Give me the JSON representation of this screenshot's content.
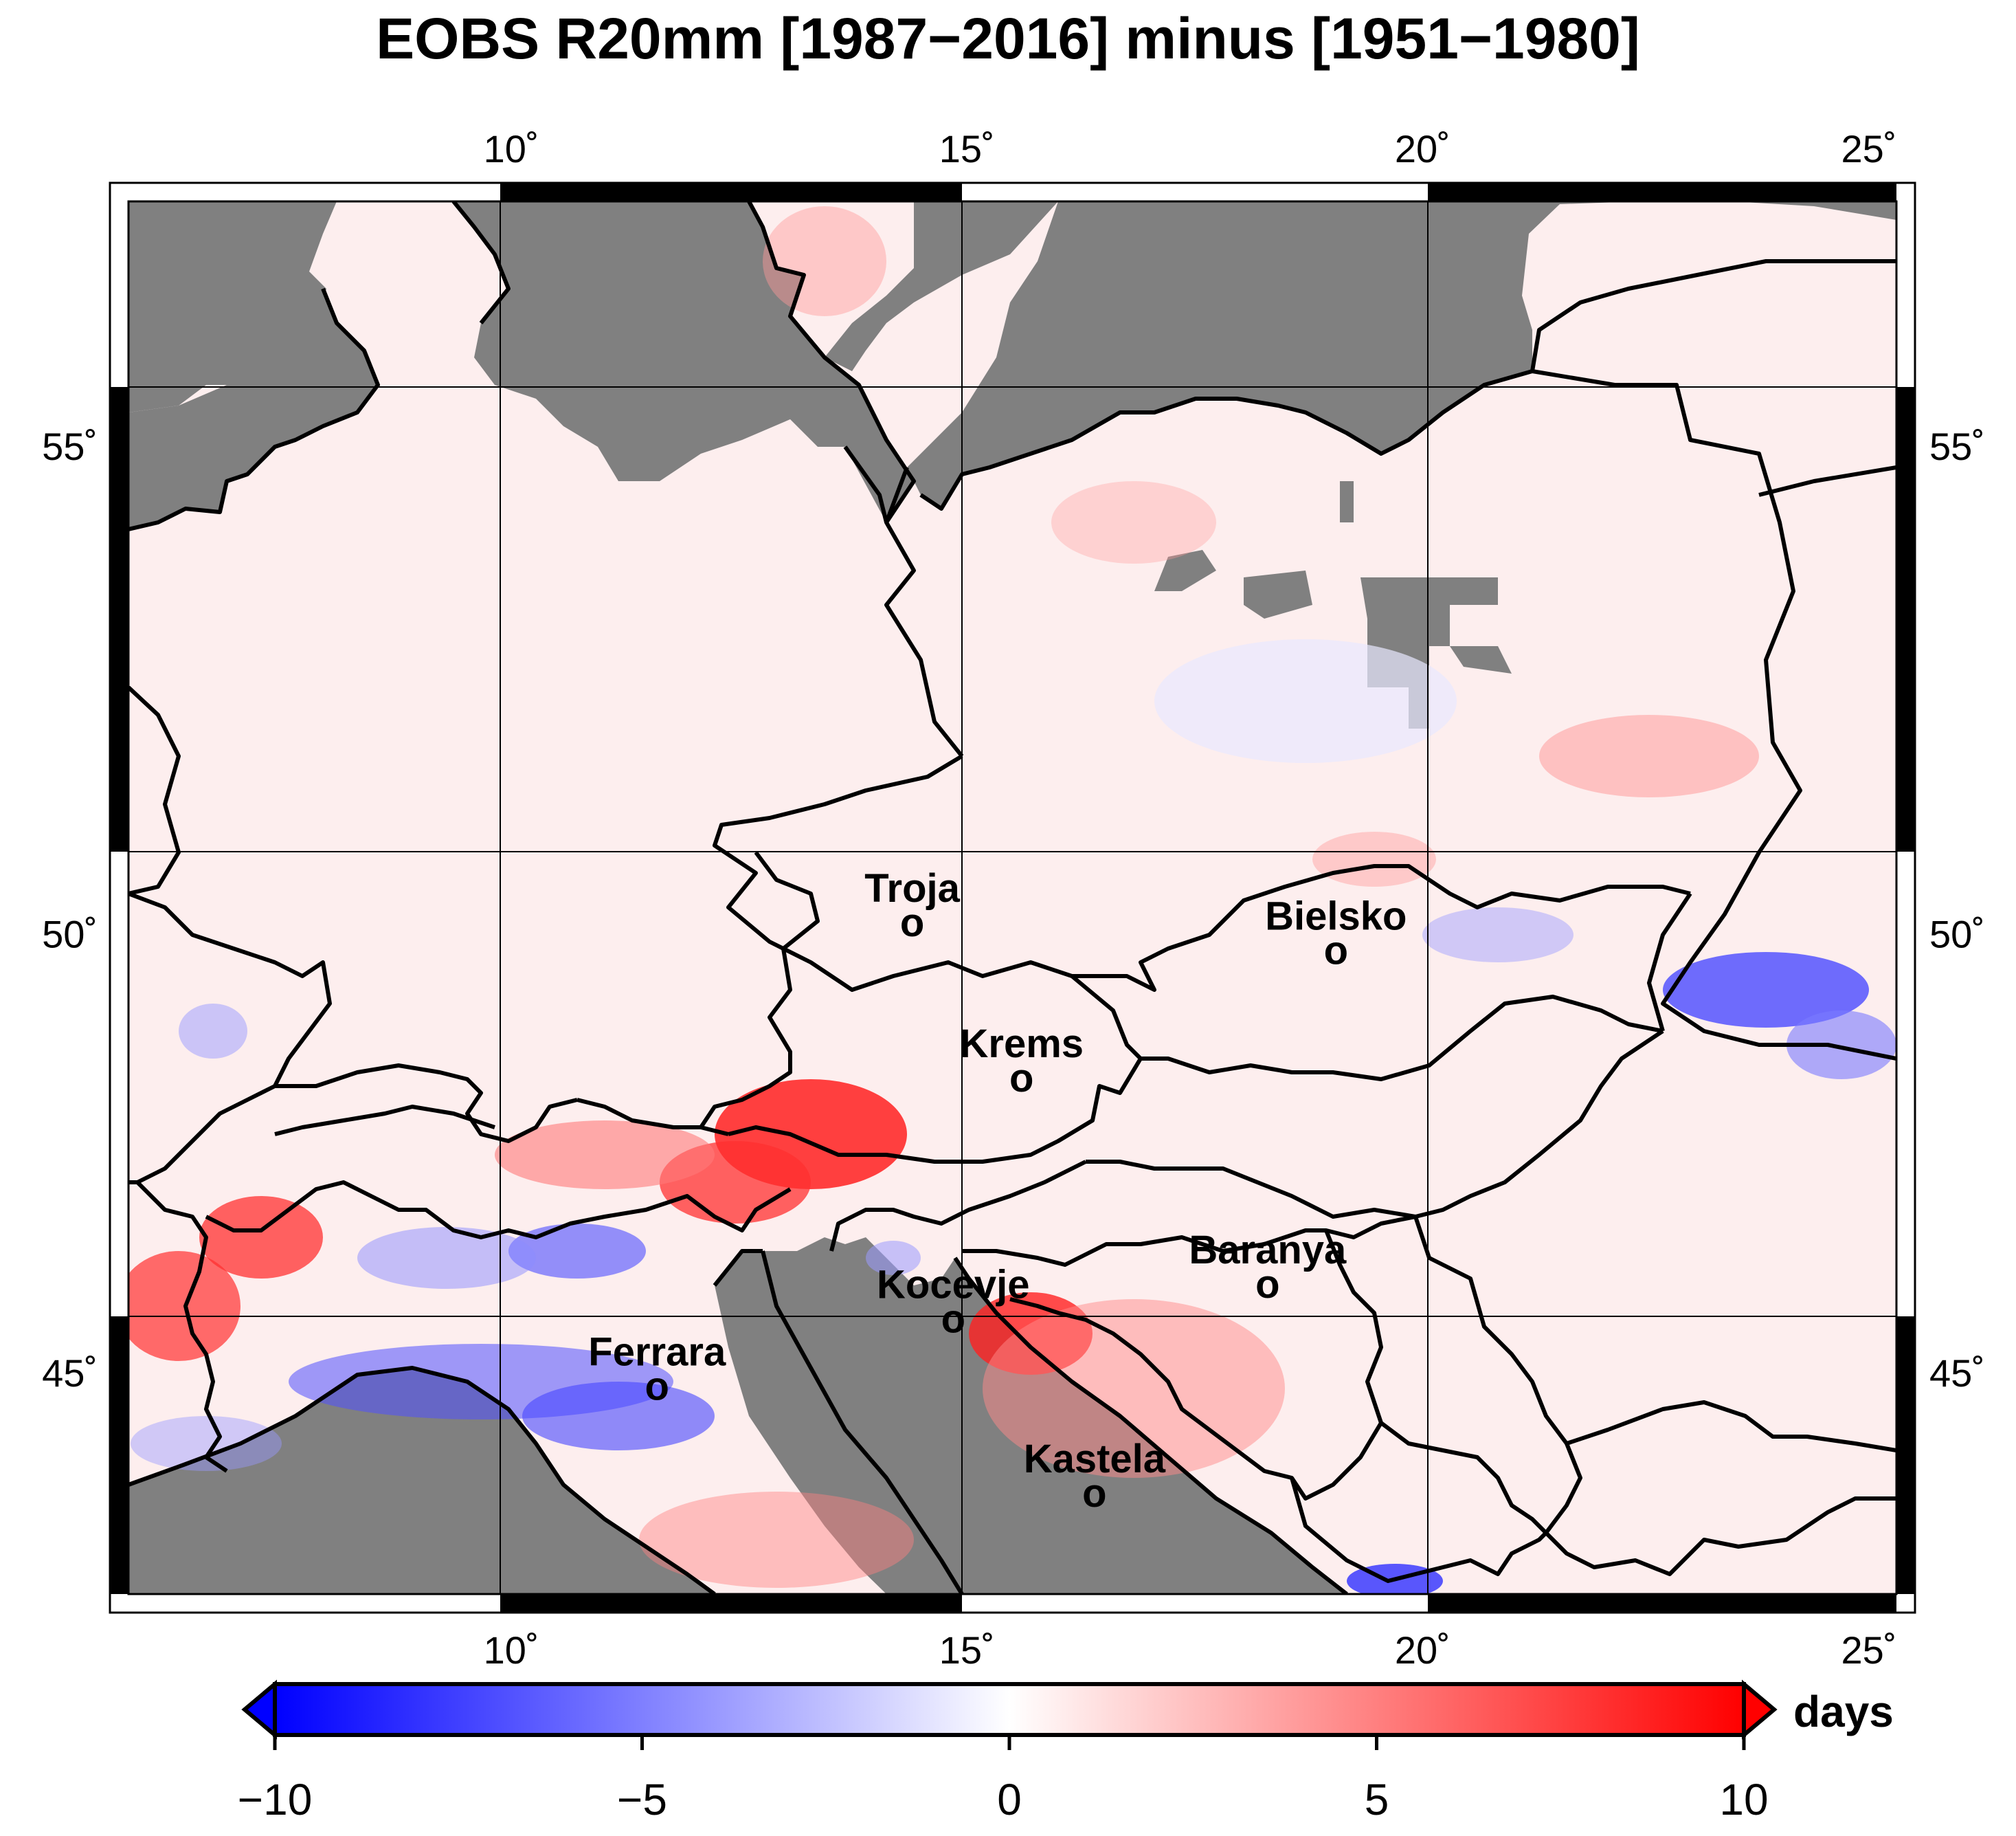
{
  "title": "EOBS R20mm [1987−2016] minus [1951−1980]",
  "map": {
    "lon_range": [
      5.8,
      25.2
    ],
    "lat_range": [
      42.3,
      57.3
    ],
    "lon_ticks": [
      {
        "value": 10,
        "label": "10˚"
      },
      {
        "value": 15,
        "label": "15˚"
      },
      {
        "value": 20,
        "label": "20˚"
      },
      {
        "value": 25,
        "label": "25˚"
      }
    ],
    "lat_ticks": [
      {
        "value": 55,
        "label": "55˚"
      },
      {
        "value": 50,
        "label": "50˚"
      },
      {
        "value": 45,
        "label": "45˚"
      }
    ],
    "sea_color": "#808080",
    "grid": true,
    "cities": [
      {
        "name": "Troja",
        "lon": 14.4,
        "lat": 50.12
      },
      {
        "name": "Bielsko",
        "lon": 19.05,
        "lat": 49.82
      },
      {
        "name": "Krems",
        "lon": 15.6,
        "lat": 48.41
      },
      {
        "name": "Baranya",
        "lon": 18.3,
        "lat": 46.05
      },
      {
        "name": "Kocevje",
        "lon": 14.85,
        "lat": 45.64
      },
      {
        "name": "Ferrara",
        "lon": 11.6,
        "lat": 44.84
      },
      {
        "name": "Kastela",
        "lon": 16.4,
        "lat": 43.55
      }
    ],
    "city_marker": "o"
  },
  "colorbar": {
    "min": -10,
    "max": 10,
    "ticks": [
      {
        "value": -10,
        "label": "−10"
      },
      {
        "value": -5,
        "label": "−5"
      },
      {
        "value": 0,
        "label": "0"
      },
      {
        "value": 5,
        "label": "5"
      },
      {
        "value": 10,
        "label": "10"
      }
    ],
    "unit": "days",
    "low_color": "#0000ff",
    "mid_color": "#ffffff",
    "high_color": "#ff0000"
  }
}
